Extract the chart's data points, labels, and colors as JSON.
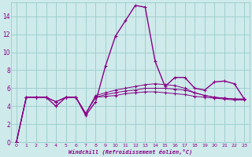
{
  "xlabel": "Windchill (Refroidissement éolien,°C)",
  "background_color": "#ceeaea",
  "line_color": "#880088",
  "grid_color": "#99cccc",
  "x_values": [
    0,
    1,
    2,
    3,
    4,
    5,
    6,
    7,
    8,
    9,
    10,
    11,
    12,
    13,
    14,
    15,
    16,
    17,
    18,
    19,
    20,
    21,
    22,
    23
  ],
  "series": [
    [
      0.0,
      5.0,
      5.0,
      5.0,
      4.0,
      5.0,
      5.0,
      3.0,
      4.5,
      8.5,
      11.8,
      13.5,
      15.2,
      15.0,
      9.0,
      6.2,
      7.2,
      7.2,
      6.0,
      5.8,
      6.7,
      6.8,
      6.5,
      4.8
    ],
    [
      0.0,
      5.0,
      5.0,
      5.0,
      4.5,
      5.0,
      5.0,
      3.2,
      5.2,
      5.5,
      5.8,
      6.0,
      6.2,
      6.4,
      6.5,
      6.4,
      6.3,
      6.0,
      5.5,
      5.2,
      5.0,
      4.9,
      4.8,
      4.8
    ],
    [
      0.0,
      5.0,
      5.0,
      5.0,
      4.5,
      5.0,
      5.0,
      3.2,
      5.0,
      5.3,
      5.5,
      5.7,
      5.8,
      6.0,
      6.0,
      6.0,
      5.9,
      5.8,
      5.5,
      5.2,
      5.0,
      4.9,
      4.8,
      4.8
    ],
    [
      0.0,
      5.0,
      5.0,
      5.0,
      4.5,
      5.0,
      5.0,
      3.2,
      5.0,
      5.1,
      5.2,
      5.4,
      5.5,
      5.6,
      5.6,
      5.5,
      5.4,
      5.3,
      5.1,
      5.0,
      4.9,
      4.8,
      4.7,
      4.7
    ]
  ],
  "ylim": [
    0,
    15.5
  ],
  "xlim": [
    -0.5,
    23.5
  ],
  "yticks": [
    0,
    2,
    4,
    6,
    8,
    10,
    12,
    14
  ],
  "xticks": [
    0,
    1,
    2,
    3,
    4,
    5,
    6,
    7,
    8,
    9,
    10,
    11,
    12,
    13,
    14,
    15,
    16,
    17,
    18,
    19,
    20,
    21,
    22,
    23
  ],
  "xtick_labels": [
    "0",
    "1",
    "2",
    "3",
    "4",
    "5",
    "6",
    "7",
    "8",
    "9",
    "10",
    "11",
    "12",
    "13",
    "14",
    "15",
    "16",
    "17",
    "18",
    "19",
    "20",
    "21",
    "22",
    "23"
  ],
  "marker": "+"
}
